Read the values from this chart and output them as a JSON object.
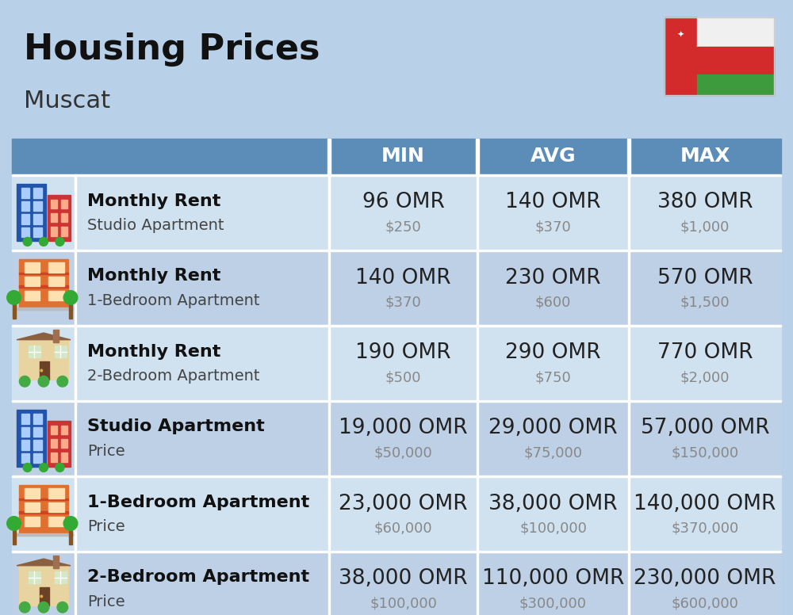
{
  "title": "Housing Prices",
  "subtitle": "Muscat",
  "background_color": "#b8d0e8",
  "header_bg_color": "#5b8db8",
  "header_text_color": "#ffffff",
  "row_bg_light": "#d0e2f0",
  "row_bg_dark": "#bdd0e5",
  "col_headers": [
    "MIN",
    "AVG",
    "MAX"
  ],
  "rows": [
    {
      "bold_label": "Monthly Rent",
      "sub_label": "Studio Apartment",
      "icon_type": "blue_building",
      "min_omr": "96 OMR",
      "min_usd": "$250",
      "avg_omr": "140 OMR",
      "avg_usd": "$370",
      "max_omr": "380 OMR",
      "max_usd": "$1,000"
    },
    {
      "bold_label": "Monthly Rent",
      "sub_label": "1-Bedroom Apartment",
      "icon_type": "orange_building",
      "min_omr": "140 OMR",
      "min_usd": "$370",
      "avg_omr": "230 OMR",
      "avg_usd": "$600",
      "max_omr": "570 OMR",
      "max_usd": "$1,500"
    },
    {
      "bold_label": "Monthly Rent",
      "sub_label": "2-Bedroom Apartment",
      "icon_type": "house_building",
      "min_omr": "190 OMR",
      "min_usd": "$500",
      "avg_omr": "290 OMR",
      "avg_usd": "$750",
      "max_omr": "770 OMR",
      "max_usd": "$2,000"
    },
    {
      "bold_label": "Studio Apartment",
      "sub_label": "Price",
      "icon_type": "blue_building",
      "min_omr": "19,000 OMR",
      "min_usd": "$50,000",
      "avg_omr": "29,000 OMR",
      "avg_usd": "$75,000",
      "max_omr": "57,000 OMR",
      "max_usd": "$150,000"
    },
    {
      "bold_label": "1-Bedroom Apartment",
      "sub_label": "Price",
      "icon_type": "orange_building",
      "min_omr": "23,000 OMR",
      "min_usd": "$60,000",
      "avg_omr": "38,000 OMR",
      "avg_usd": "$100,000",
      "max_omr": "140,000 OMR",
      "max_usd": "$370,000"
    },
    {
      "bold_label": "2-Bedroom Apartment",
      "sub_label": "Price",
      "icon_type": "house_building",
      "min_omr": "38,000 OMR",
      "min_usd": "$100,000",
      "avg_omr": "110,000 OMR",
      "avg_usd": "$300,000",
      "max_omr": "230,000 OMR",
      "max_usd": "$600,000"
    }
  ],
  "title_fontsize": 32,
  "subtitle_fontsize": 22,
  "omr_fontsize": 19,
  "usd_fontsize": 13,
  "label_bold_fontsize": 16,
  "label_sub_fontsize": 14,
  "col_header_fontsize": 18
}
